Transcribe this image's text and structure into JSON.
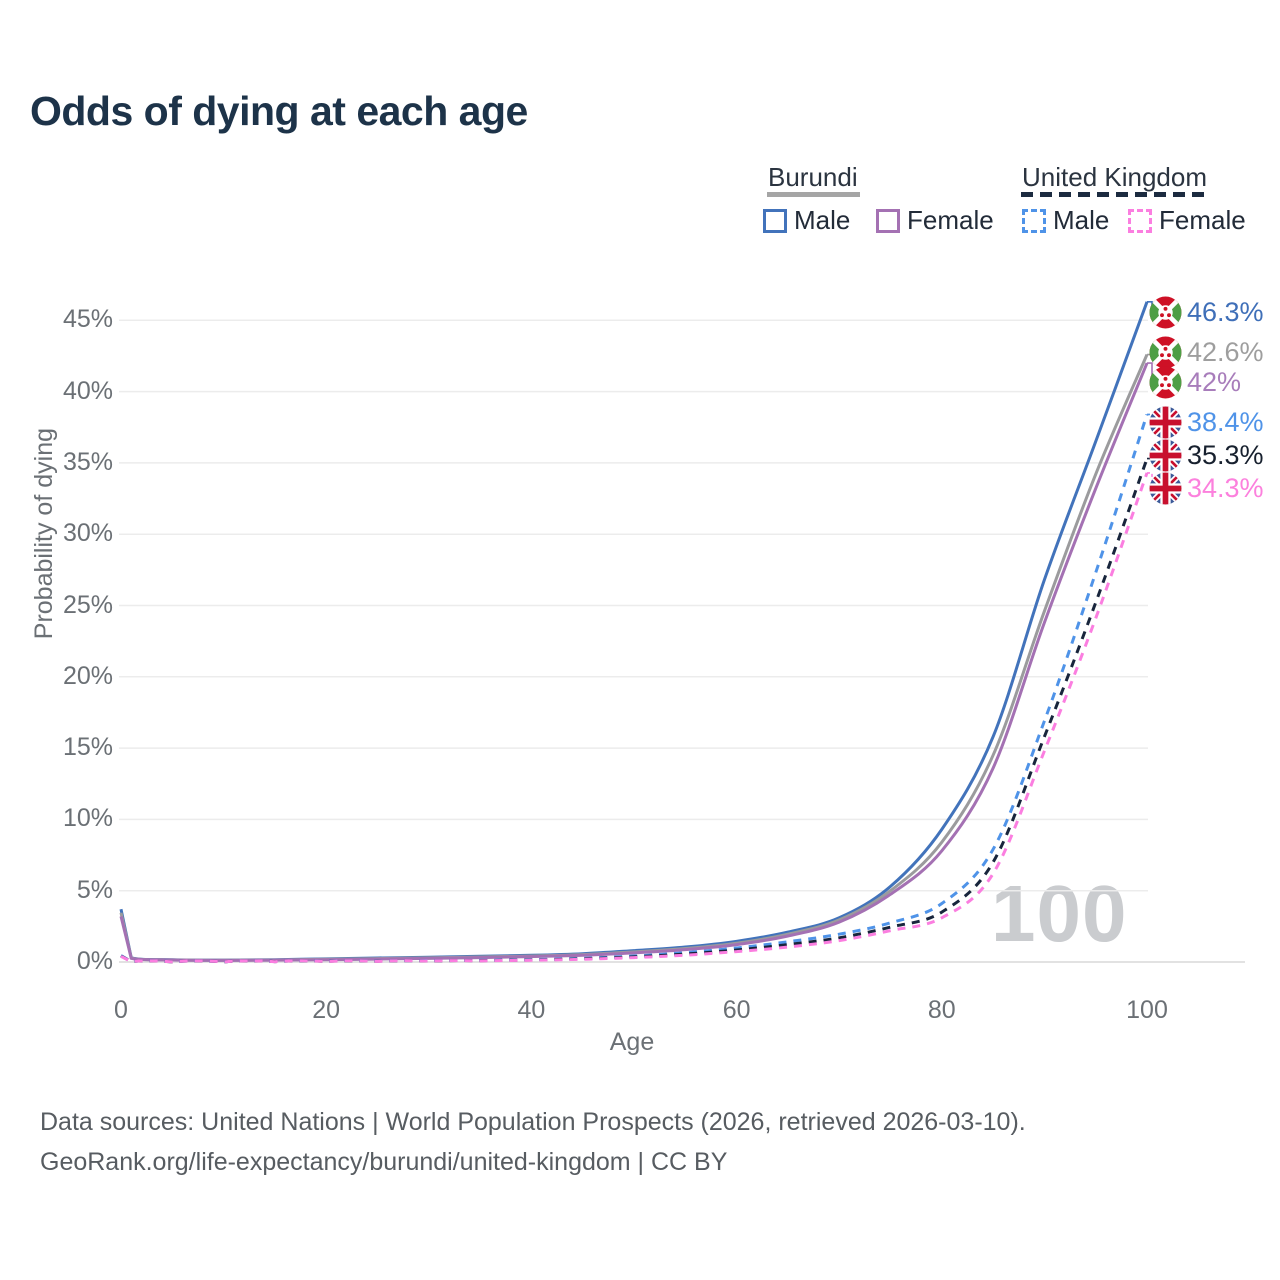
{
  "title": "Odds of dying at each age",
  "watermark": "100",
  "legend": {
    "groups": [
      {
        "id": "burundi",
        "label": "Burundi",
        "line_style": "solid",
        "underline_color": "#a5a5a5",
        "items": [
          {
            "label": "Male",
            "color": "#4273bb"
          },
          {
            "label": "Female",
            "color": "#a471b3"
          }
        ]
      },
      {
        "id": "uk",
        "label": "United Kingdom",
        "line_style": "dashed",
        "underline_color": "#1c2b40",
        "items": [
          {
            "label": "Male",
            "color": "#4f93e8"
          },
          {
            "label": "Female",
            "color": "#fb7ee0"
          }
        ]
      }
    ]
  },
  "footer": {
    "line1": "Data sources: United Nations | World Population Prospects (2026, retrieved 2026-03-10).",
    "line2": "GeoRank.org/life-expectancy/burundi/united-kingdom | CC BY"
  },
  "chart_data": {
    "type": "line",
    "title": "Odds of dying at each age",
    "xlabel": "Age",
    "ylabel": "Probability of dying",
    "xlim": [
      0,
      100
    ],
    "ylim": [
      0,
      47
    ],
    "grid": "horizontal",
    "legend_position": "top-right",
    "x_ticks": [
      {
        "value": 0,
        "label": "0"
      },
      {
        "value": 20,
        "label": "20"
      },
      {
        "value": 40,
        "label": "40"
      },
      {
        "value": 60,
        "label": "60"
      },
      {
        "value": 80,
        "label": "80"
      },
      {
        "value": 100,
        "label": "100"
      }
    ],
    "y_ticks": [
      {
        "value": 0,
        "label": "0%"
      },
      {
        "value": 5,
        "label": "5%"
      },
      {
        "value": 10,
        "label": "10%"
      },
      {
        "value": 15,
        "label": "15%"
      },
      {
        "value": 20,
        "label": "20%"
      },
      {
        "value": 25,
        "label": "25%"
      },
      {
        "value": 30,
        "label": "30%"
      },
      {
        "value": 35,
        "label": "35%"
      },
      {
        "value": 40,
        "label": "40%"
      },
      {
        "value": 45,
        "label": "45%"
      }
    ],
    "x": [
      0,
      1,
      5,
      10,
      15,
      20,
      25,
      30,
      35,
      40,
      45,
      50,
      55,
      60,
      65,
      70,
      75,
      80,
      85,
      90,
      95,
      100
    ],
    "series": [
      {
        "id": "burundi-male",
        "name": "Burundi Male",
        "flag": "burundi",
        "color": "#4273bb",
        "dash": false,
        "end_label": "46.3%",
        "label_color": "#3f6fb8",
        "values": [
          3.7,
          0.3,
          0.16,
          0.13,
          0.16,
          0.22,
          0.28,
          0.34,
          0.4,
          0.47,
          0.58,
          0.8,
          1.05,
          1.45,
          2.1,
          3.1,
          5.3,
          9.3,
          15.8,
          26.8,
          36.5,
          46.3
        ]
      },
      {
        "id": "burundi-both",
        "name": "Burundi Both sexes",
        "flag": "burundi",
        "color": "#9b9b9d",
        "dash": false,
        "end_label": "42.6%",
        "label_color": "#9e9e9e",
        "values": [
          3.45,
          0.28,
          0.15,
          0.12,
          0.14,
          0.19,
          0.24,
          0.29,
          0.35,
          0.42,
          0.52,
          0.71,
          0.95,
          1.32,
          1.95,
          2.95,
          5.0,
          8.4,
          14.5,
          24.6,
          34.2,
          42.6
        ]
      },
      {
        "id": "burundi-female",
        "name": "Burundi Female",
        "flag": "burundi",
        "color": "#a471b3",
        "dash": false,
        "end_label": "42%",
        "label_color": "#a87dbb",
        "values": [
          3.2,
          0.26,
          0.14,
          0.11,
          0.13,
          0.16,
          0.2,
          0.25,
          0.31,
          0.38,
          0.47,
          0.64,
          0.87,
          1.22,
          1.82,
          2.8,
          4.75,
          7.8,
          13.6,
          23.8,
          33.2,
          42.0
        ]
      },
      {
        "id": "uk-male",
        "name": "United Kingdom Male",
        "flag": "uk",
        "color": "#4f93e8",
        "dash": true,
        "end_label": "38.4%",
        "label_color": "#4f93e8",
        "values": [
          0.45,
          0.03,
          0.01,
          0.01,
          0.03,
          0.06,
          0.07,
          0.09,
          0.12,
          0.17,
          0.26,
          0.42,
          0.66,
          0.98,
          1.42,
          1.95,
          2.75,
          4.1,
          7.9,
          16.9,
          27.3,
          38.4
        ]
      },
      {
        "id": "uk-both",
        "name": "United Kingdom Both sexes",
        "flag": "uk",
        "color": "#18253c",
        "dash": true,
        "end_label": "35.3%",
        "label_color": "#17202e",
        "values": [
          0.42,
          0.028,
          0.01,
          0.01,
          0.025,
          0.045,
          0.055,
          0.07,
          0.1,
          0.14,
          0.22,
          0.36,
          0.56,
          0.84,
          1.22,
          1.7,
          2.45,
          3.5,
          7.0,
          15.8,
          25.2,
          35.3
        ]
      },
      {
        "id": "uk-female",
        "name": "United Kingdom Female",
        "flag": "uk",
        "color": "#fb7ee0",
        "dash": true,
        "end_label": "34.3%",
        "label_color": "#fc80dd",
        "values": [
          0.4,
          0.025,
          0.01,
          0.01,
          0.02,
          0.035,
          0.045,
          0.06,
          0.08,
          0.12,
          0.19,
          0.31,
          0.48,
          0.73,
          1.05,
          1.5,
          2.2,
          3.1,
          6.2,
          14.8,
          24.1,
          34.3
        ]
      }
    ]
  }
}
